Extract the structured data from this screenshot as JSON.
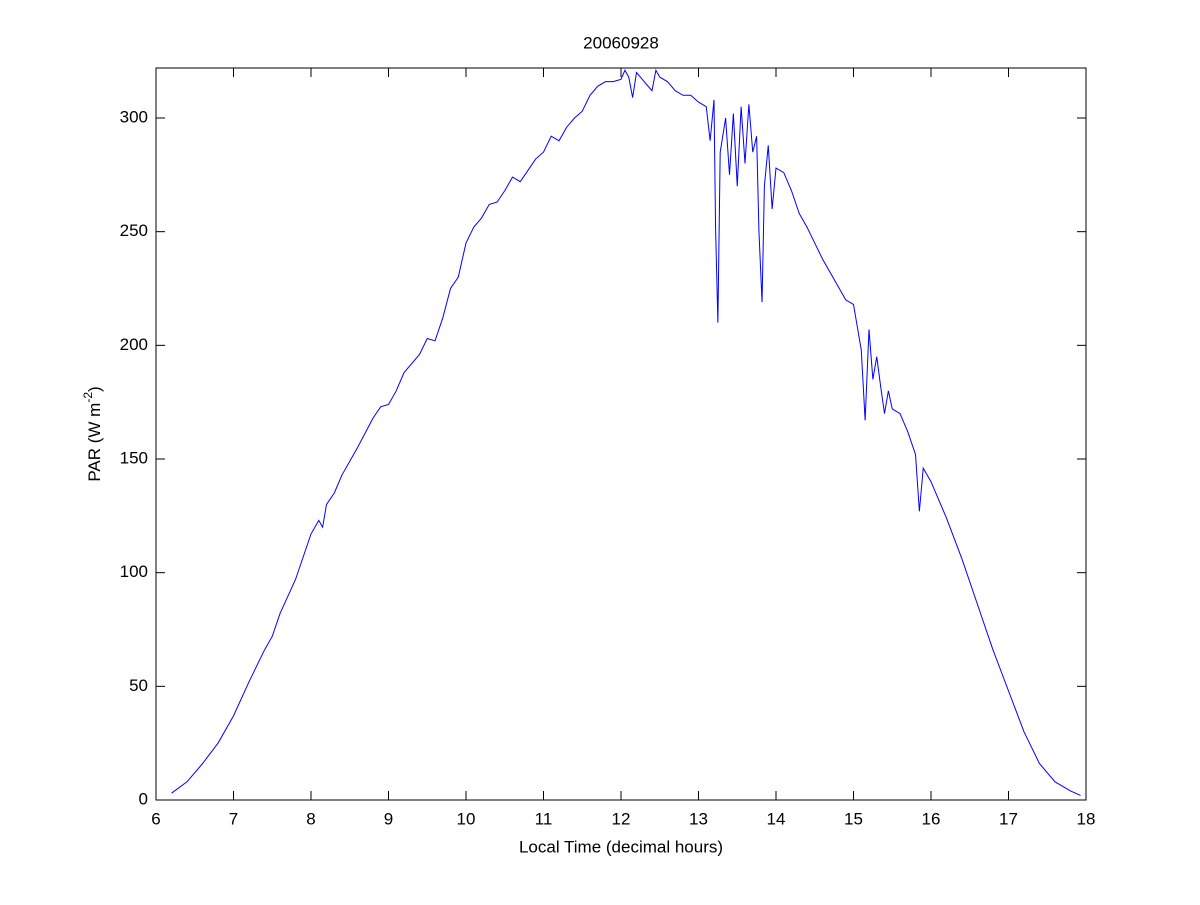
{
  "chart_data": {
    "type": "line",
    "title": "20060928",
    "x_label": "Local Time (decimal hours)",
    "y_label": [
      "PAR (W m",
      "-2",
      ")"
    ],
    "xlim": [
      6,
      18
    ],
    "ylim": [
      0,
      322
    ],
    "xticks": [
      6,
      7,
      8,
      9,
      10,
      11,
      12,
      13,
      14,
      15,
      16,
      17,
      18
    ],
    "yticks": [
      0,
      50,
      100,
      150,
      200,
      250,
      300
    ],
    "grid": false,
    "series": [
      {
        "color": "#0000ff",
        "x": [
          6.2,
          6.4,
          6.6,
          6.8,
          7.0,
          7.2,
          7.4,
          7.5,
          7.6,
          7.8,
          8.0,
          8.1,
          8.15,
          8.2,
          8.3,
          8.4,
          8.6,
          8.8,
          8.9,
          9.0,
          9.1,
          9.2,
          9.4,
          9.5,
          9.6,
          9.7,
          9.8,
          9.9,
          10.0,
          10.1,
          10.2,
          10.3,
          10.4,
          10.5,
          10.6,
          10.7,
          10.8,
          10.9,
          11.0,
          11.1,
          11.2,
          11.3,
          11.4,
          11.5,
          11.6,
          11.7,
          11.8,
          11.9,
          12.0,
          12.05,
          12.1,
          12.15,
          12.2,
          12.3,
          12.4,
          12.45,
          12.5,
          12.6,
          12.7,
          12.8,
          12.9,
          13.0,
          13.1,
          13.15,
          13.2,
          13.22,
          13.25,
          13.28,
          13.35,
          13.4,
          13.45,
          13.5,
          13.55,
          13.6,
          13.65,
          13.7,
          13.75,
          13.78,
          13.82,
          13.85,
          13.9,
          13.95,
          14.0,
          14.1,
          14.2,
          14.3,
          14.4,
          14.5,
          14.6,
          14.7,
          14.8,
          14.9,
          15.0,
          15.05,
          15.1,
          15.15,
          15.2,
          15.25,
          15.3,
          15.35,
          15.4,
          15.45,
          15.5,
          15.6,
          15.7,
          15.8,
          15.85,
          15.9,
          16.0,
          16.2,
          16.4,
          16.6,
          16.8,
          17.0,
          17.2,
          17.4,
          17.6,
          17.8,
          17.93
        ],
        "values": [
          3,
          8,
          16,
          25,
          37,
          52,
          66,
          72,
          82,
          97,
          117,
          123,
          120,
          130,
          135,
          143,
          155,
          168,
          173,
          174,
          180,
          188,
          196,
          203,
          202,
          212,
          225,
          230,
          245,
          252,
          256,
          262,
          263,
          268,
          274,
          272,
          277,
          282,
          285,
          292,
          290,
          296,
          300,
          303,
          310,
          314,
          316,
          316,
          317,
          321,
          318,
          309,
          320,
          316,
          312,
          321,
          318,
          316,
          312,
          310,
          310,
          307,
          305,
          290,
          308,
          252,
          210,
          285,
          300,
          275,
          302,
          270,
          305,
          280,
          306,
          285,
          292,
          250,
          219,
          270,
          288,
          260,
          278,
          276,
          268,
          258,
          252,
          245,
          238,
          232,
          226,
          220,
          218,
          208,
          198,
          167,
          207,
          185,
          195,
          182,
          170,
          180,
          172,
          170,
          162,
          152,
          127,
          146,
          140,
          124,
          106,
          86,
          66,
          48,
          30,
          16,
          8,
          4,
          2
        ]
      }
    ]
  }
}
